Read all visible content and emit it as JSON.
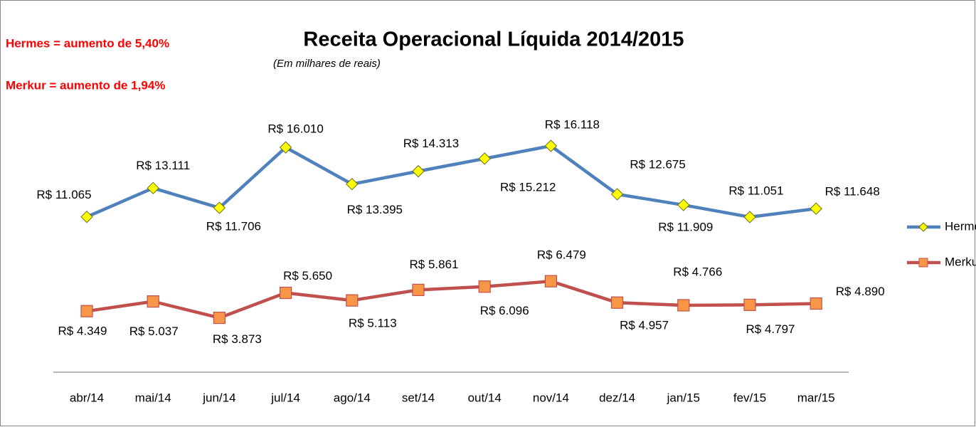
{
  "chart_data": {
    "type": "line",
    "title": "Receita Operacional Líquida 2014/2015",
    "subtitle": "(Em milhares de reais)",
    "annotations": [
      "Hermes = aumento de 5,40%",
      "Merkur =  aumento de 1,94%"
    ],
    "categories": [
      "abr/14",
      "mai/14",
      "jun/14",
      "jul/14",
      "ago/14",
      "set/14",
      "out/14",
      "nov/14",
      "dez/14",
      "jan/15",
      "fev/15",
      "mar/15"
    ],
    "series": [
      {
        "name": "Hermes",
        "color": "#4f81bd",
        "marker": "diamond",
        "marker_color": "#ffff00",
        "values": [
          11065,
          13111,
          11706,
          16010,
          13395,
          14313,
          15212,
          16118,
          12675,
          11909,
          11051,
          11648
        ],
        "value_labels": [
          "R$ 11.065",
          "R$ 13.111",
          "R$ 11.706",
          "R$ 16.010",
          "R$ 13.395",
          "R$ 14.313",
          "R$ 15.212",
          "R$ 16.118",
          "R$ 12.675",
          "R$ 11.909",
          "R$ 11.051",
          "R$ 11.648"
        ]
      },
      {
        "name": "Merkur",
        "color": "#c0504d",
        "marker": "square",
        "marker_color": "#f79646",
        "values": [
          4349,
          5037,
          3873,
          5650,
          5113,
          5861,
          6096,
          6479,
          4957,
          4766,
          4797,
          4890
        ],
        "value_labels": [
          "R$ 4.349",
          "R$ 5.037",
          "R$ 3.873",
          "R$ 5.650",
          "R$ 5.113",
          "R$ 5.861",
          "R$ 6.096",
          "R$ 6.479",
          "R$ 4.957",
          "R$ 4.766",
          "R$ 4.797",
          "R$ 4.890"
        ]
      }
    ],
    "legend": "right"
  }
}
